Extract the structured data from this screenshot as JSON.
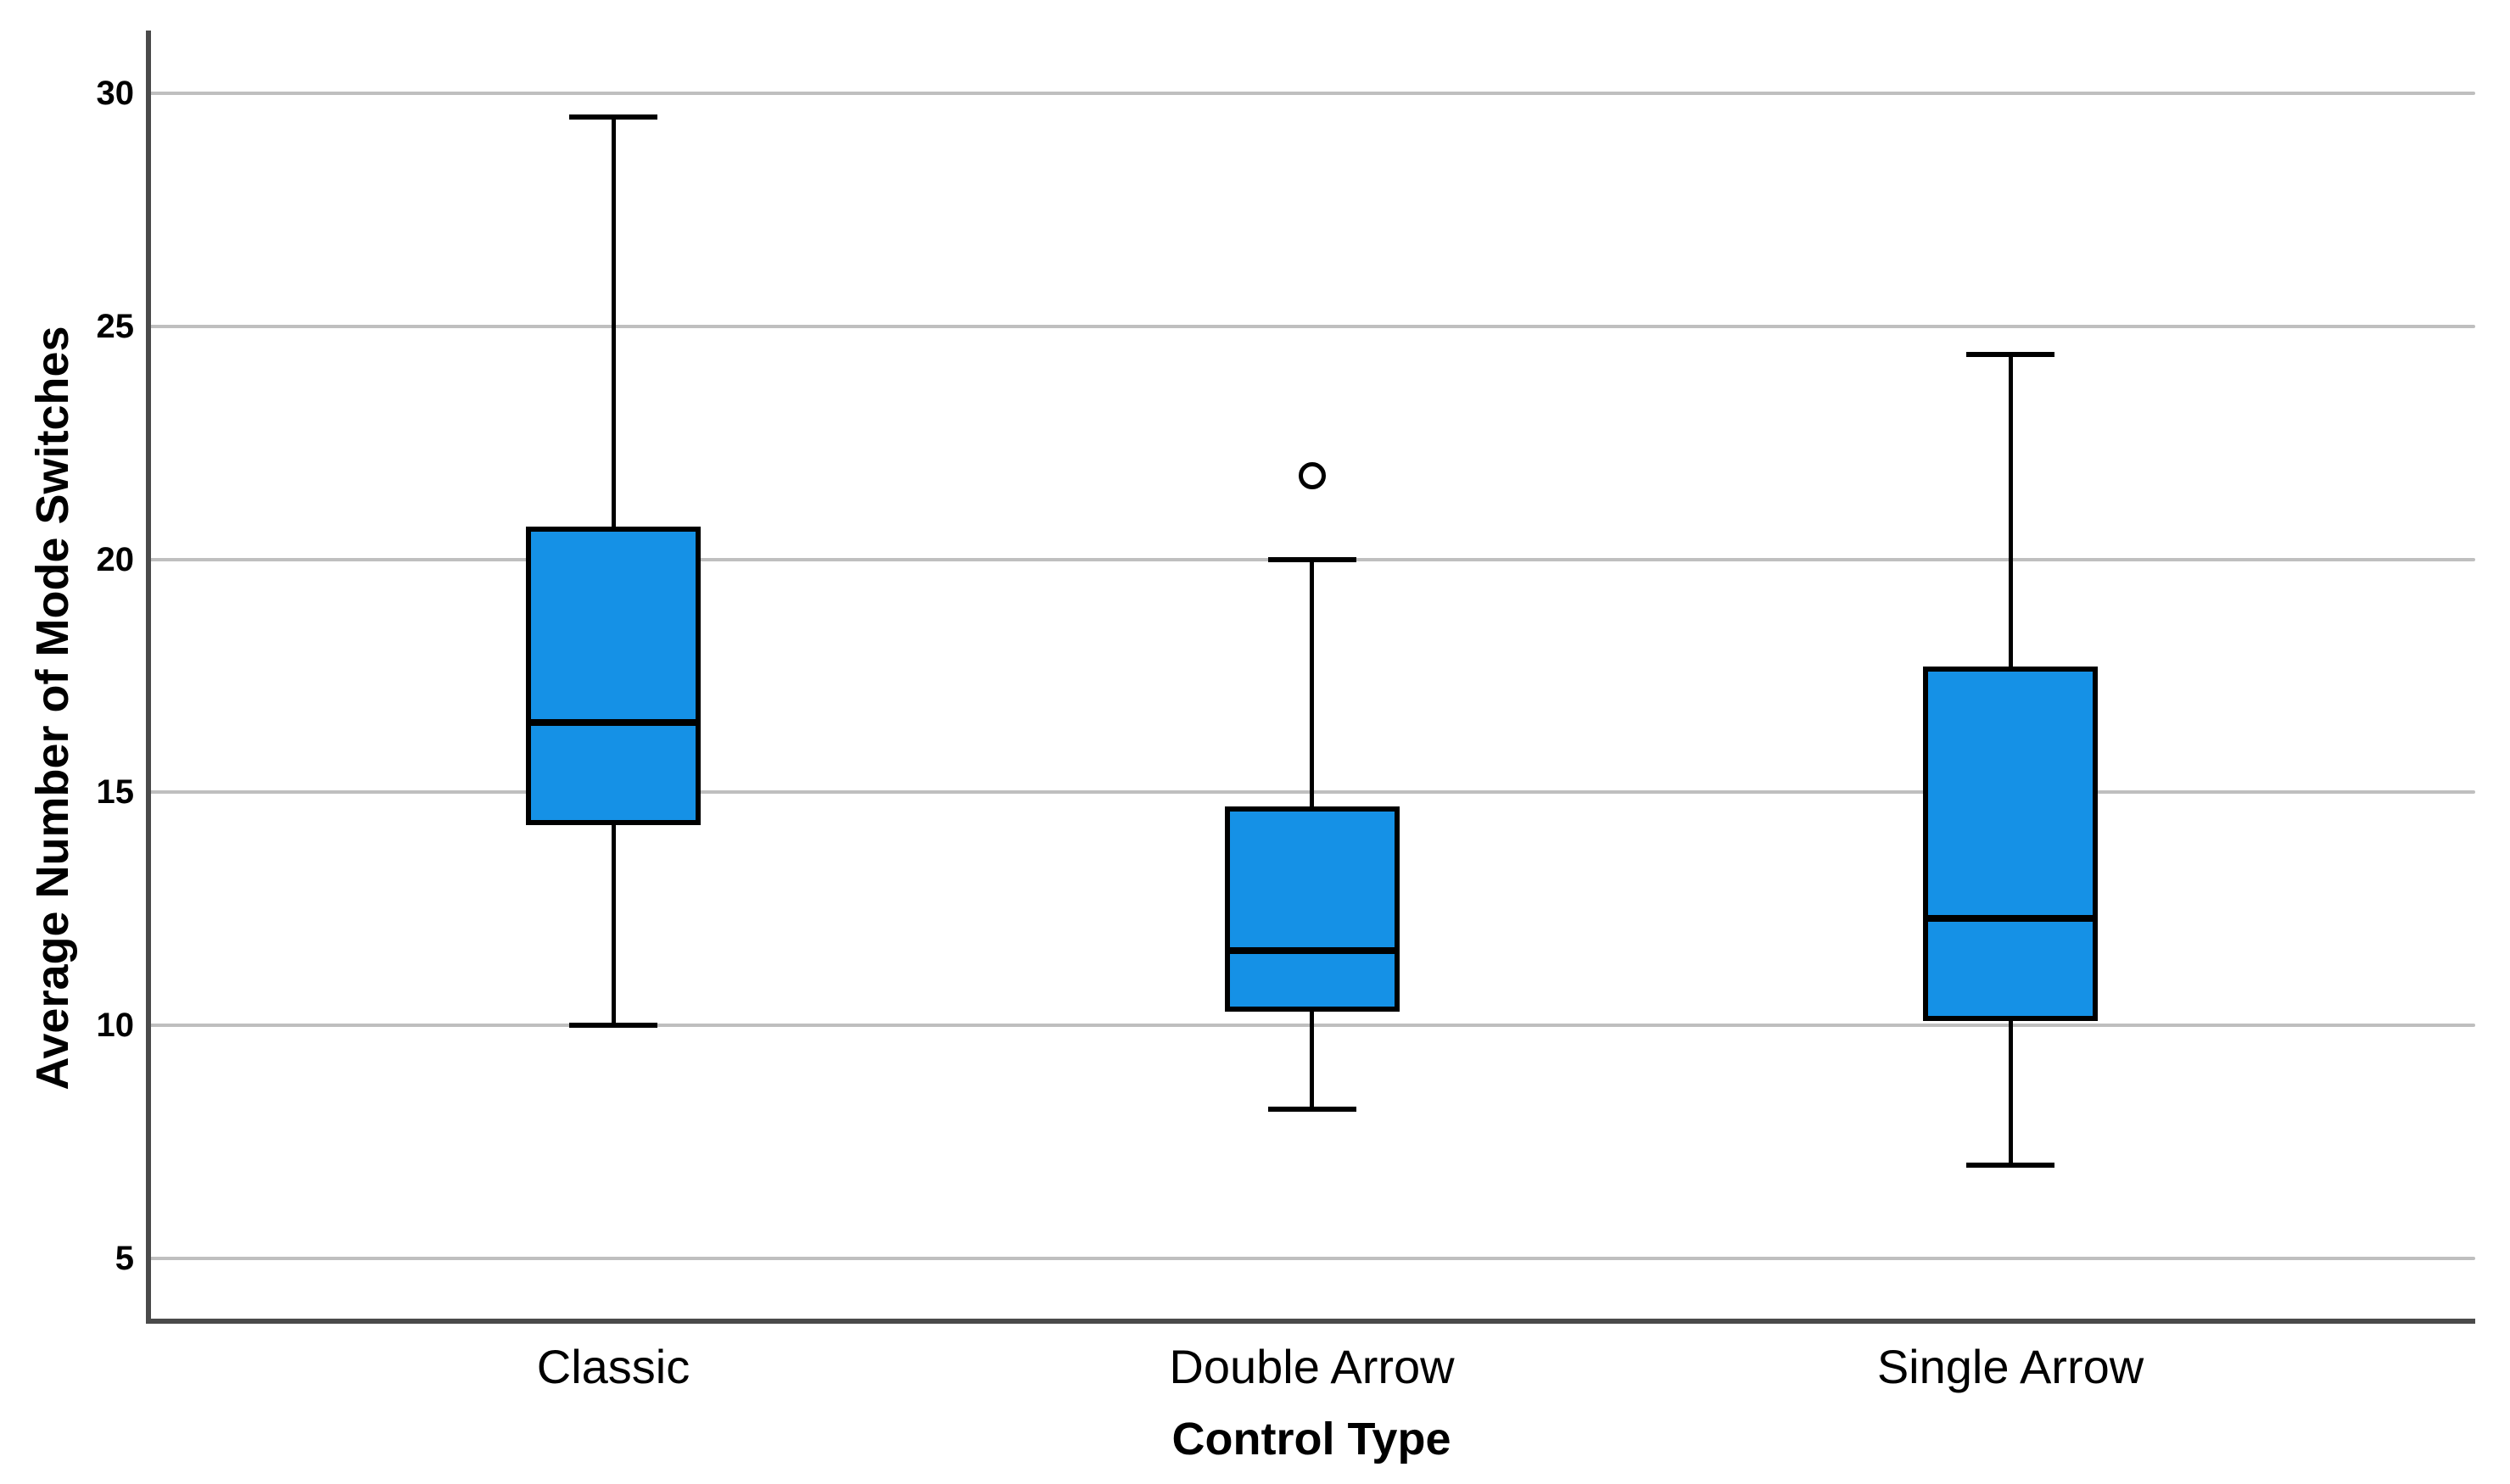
{
  "chart_data": {
    "type": "boxplot",
    "title": "",
    "xlabel": "Control Type",
    "ylabel": "Average Number of Mode Switches",
    "categories": [
      "Classic",
      "Double Arrow",
      "Single Arrow"
    ],
    "y_ticks": [
      5,
      10,
      15,
      20,
      25,
      30
    ],
    "ylim": [
      3.65,
      31.35
    ],
    "grid": "horizontal-only",
    "legend": "none",
    "series": [
      {
        "name": "Classic",
        "min": 10.0,
        "q1": 14.3,
        "median": 16.5,
        "q3": 20.7,
        "max": 29.5,
        "outliers": []
      },
      {
        "name": "Double Arrow",
        "min": 8.2,
        "q1": 10.3,
        "median": 11.6,
        "q3": 14.7,
        "max": 20.0,
        "outliers": [
          21.8
        ]
      },
      {
        "name": "Single Arrow",
        "min": 7.0,
        "q1": 10.1,
        "median": 12.3,
        "q3": 17.7,
        "max": 24.4,
        "outliers": []
      }
    ],
    "colors": {
      "box_fill": "#1591e6",
      "box_border": "#000000",
      "median": "#000000",
      "whisker": "#000000",
      "outlier": "#000000",
      "gridline": "#bfbfbf",
      "axis": "#4a4a4a",
      "text": "#000000",
      "background": "#ffffff"
    }
  }
}
